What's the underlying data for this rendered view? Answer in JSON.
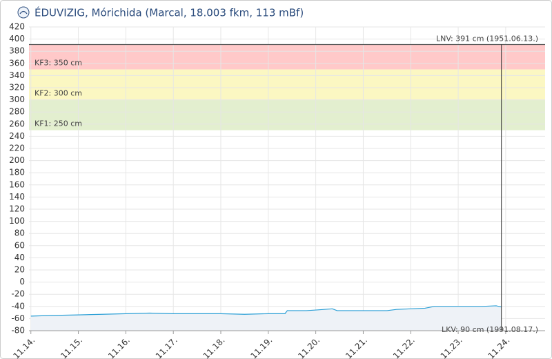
{
  "chart_data": {
    "type": "area",
    "title": "ÉDUVIZIG, Mórichida (Marcal, 18.003 fkm, 113 mBf)",
    "xlim": [
      13.96,
      24.83
    ],
    "xticks": [
      {
        "value": 14,
        "label": "11.14."
      },
      {
        "value": 15,
        "label": "11.15."
      },
      {
        "value": 16,
        "label": "11.16."
      },
      {
        "value": 17,
        "label": "11.17."
      },
      {
        "value": 18,
        "label": "11.18."
      },
      {
        "value": 19,
        "label": "11.19."
      },
      {
        "value": 20,
        "label": "11.20."
      },
      {
        "value": 21,
        "label": "11.21."
      },
      {
        "value": 22,
        "label": "11.22."
      },
      {
        "value": 23,
        "label": "11.23."
      },
      {
        "value": 24,
        "label": "11.24."
      }
    ],
    "ylim": [
      -80,
      420
    ],
    "yticks": [
      -80,
      -60,
      -40,
      -20,
      0,
      20,
      40,
      60,
      80,
      100,
      120,
      140,
      160,
      180,
      200,
      220,
      240,
      260,
      280,
      300,
      320,
      340,
      360,
      380,
      400,
      420
    ],
    "grid": true,
    "series": [
      {
        "color": "#2a9fd6",
        "x": [
          14,
          14.4,
          15,
          15.5,
          16,
          16.5,
          17,
          17.5,
          18,
          18.5,
          19,
          19.35,
          19.4,
          19.8,
          20,
          20.35,
          20.45,
          21,
          21.5,
          21.7,
          22,
          22.3,
          22.5,
          23,
          23.5,
          23.8,
          23.91
        ],
        "values": [
          -56,
          -55,
          -54,
          -53,
          -52,
          -51,
          -52,
          -52,
          -52,
          -53,
          -52,
          -52,
          -47,
          -47,
          -46,
          -44,
          -47,
          -47,
          -47,
          -45,
          -44,
          -43,
          -40,
          -40,
          -40,
          -39,
          -41
        ]
      }
    ],
    "bands": [
      {
        "value": 350,
        "label": "KF3: 350 cm",
        "color": "#ffc9c9"
      },
      {
        "value": 300,
        "label": "KF2: 300 cm",
        "color": "#fbf7c2"
      },
      {
        "value": 250,
        "label": "KF1: 250 cm",
        "color": "#e3efcf"
      }
    ],
    "lnv": {
      "value": 391,
      "label": "LNV: 391 cm (1951.06.13.)"
    },
    "lkv": {
      "label": "LKV: 90 cm (1991.08.17.)"
    },
    "now": 23.91
  }
}
